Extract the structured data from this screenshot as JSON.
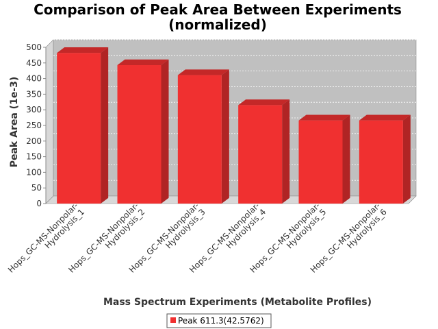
{
  "chart_data": {
    "type": "bar",
    "title_lines": [
      "Comparison of Peak Area Between Experiments",
      "(normalized)"
    ],
    "xlabel": "Mass Spectrum Experiments (Metabolite Profiles)",
    "ylabel": "Peak Area (1e-3)",
    "ylim": [
      0,
      500
    ],
    "yticks": [
      0,
      50,
      100,
      150,
      200,
      250,
      300,
      350,
      400,
      450,
      500
    ],
    "grid": true,
    "legend_position": "bottom",
    "bar_style": "3d",
    "categories": [
      [
        "Hops_GC-MS-Nonpolar-",
        "Hydrolysis_1"
      ],
      [
        "Hops_GC-MS-Nonpolar-",
        "Hydrolysis_2"
      ],
      [
        "Hops_GC-MS-Nonpolar-",
        "Hydrolysis_3"
      ],
      [
        "Hops_GC-MS-Nonpolar-",
        "Hydrolysis_4"
      ],
      [
        "Hops_GC-MS-Nonpolar-",
        "Hydrolysis_5"
      ],
      [
        "Hops_GC-MS-Nonpolar-",
        "Hydrolysis_6"
      ]
    ],
    "series": [
      {
        "name": "Peak 611.3(42.5762)",
        "color": "#f03030",
        "values": [
          482,
          443,
          411,
          315,
          266,
          266
        ]
      }
    ],
    "colors": {
      "plot_background": "#c0c0c0",
      "wall_background": "#d8d8d8",
      "bar_front": "#f03030",
      "bar_top": "#c42828",
      "bar_side": "#b02424"
    }
  }
}
